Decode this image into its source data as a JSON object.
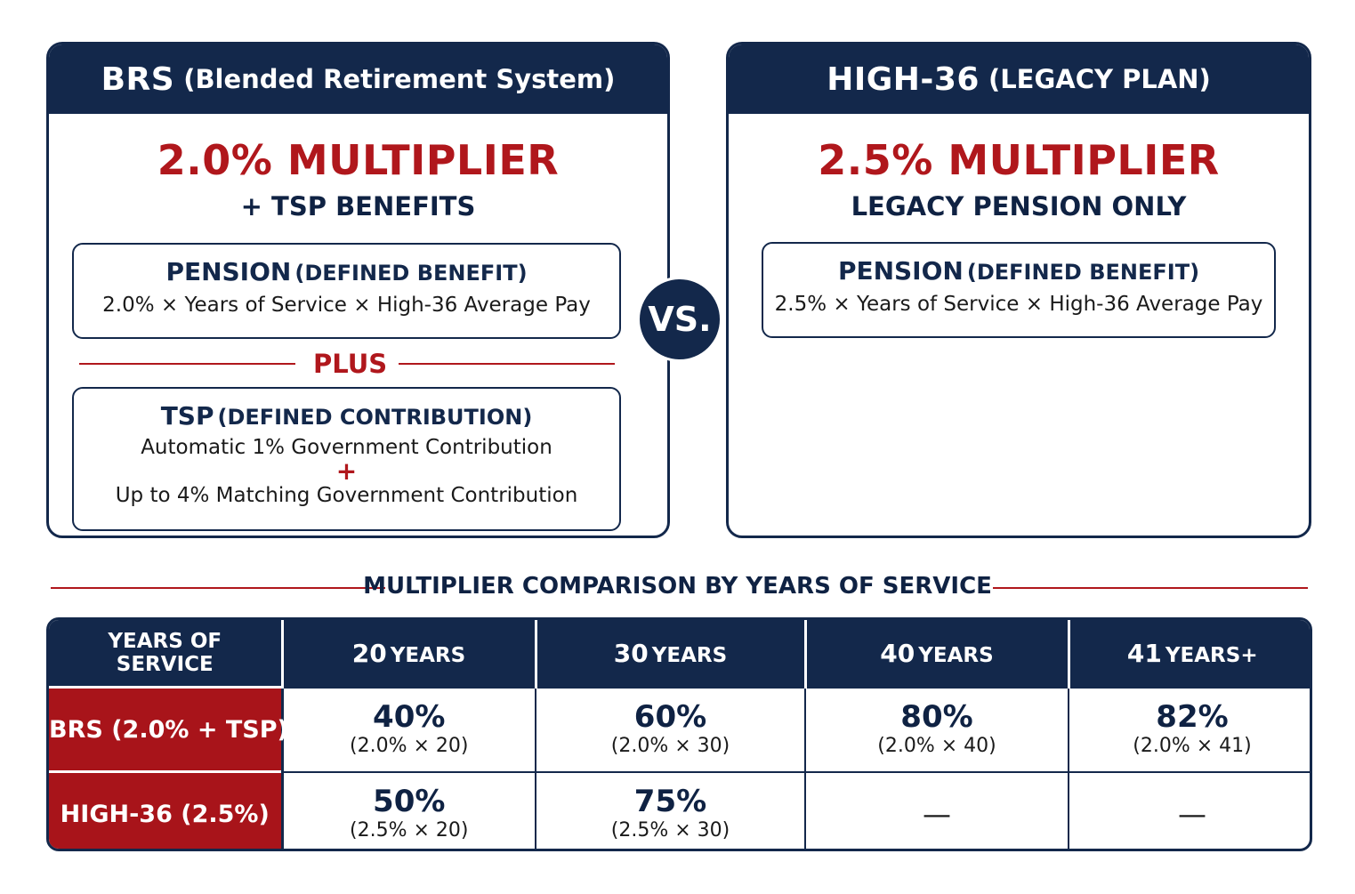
{
  "brs": {
    "header_main": "BRS",
    "header_sub": "(Blended Retirement System)",
    "multiplier": "2.0% MULTIPLIER",
    "subtitle": "+ TSP BENEFITS",
    "pension_title_main": "PENSION",
    "pension_title_sub": "(DEFINED BENEFIT)",
    "pension_formula": "2.0% × Years of Service × High-36 Average Pay",
    "plus_label": "PLUS",
    "tsp_title_main": "TSP",
    "tsp_title_sub": "(DEFINED CONTRIBUTION)",
    "tsp_line1": "Automatic 1% Government Contribution",
    "tsp_plus": "+",
    "tsp_line2": "Up to 4% Matching Government Contribution"
  },
  "vs_label": "VS.",
  "legacy": {
    "header_main": "HIGH-36",
    "header_sub": "(LEGACY PLAN)",
    "multiplier": "2.5% MULTIPLIER",
    "subtitle": "LEGACY PENSION ONLY",
    "pension_title_main": "PENSION",
    "pension_title_sub": "(DEFINED BENEFIT)",
    "pension_formula": "2.5% × Years of Service × High-36 Average Pay"
  },
  "comparison": {
    "title": "MULTIPLIER COMPARISON BY YEARS OF SERVICE",
    "corner_line1": "YEARS OF",
    "corner_line2": "SERVICE",
    "columns": [
      {
        "num": "20",
        "unit": "YEARS"
      },
      {
        "num": "30",
        "unit": "YEARS"
      },
      {
        "num": "40",
        "unit": "YEARS"
      },
      {
        "num": "41",
        "unit": "YEARS+"
      }
    ],
    "rows": [
      {
        "label": "BRS (2.0% + TSP)",
        "cells": [
          {
            "value": "40%",
            "formula": "(2.0% × 20)"
          },
          {
            "value": "60%",
            "formula": "(2.0% × 30)"
          },
          {
            "value": "80%",
            "formula": "(2.0% × 40)"
          },
          {
            "value": "82%",
            "formula": "(2.0% × 41)"
          }
        ]
      },
      {
        "label": "HIGH-36 (2.5%)",
        "cells": [
          {
            "value": "50%",
            "formula": "(2.5% × 20)"
          },
          {
            "value": "75%",
            "formula": "(2.5% × 30)"
          },
          {
            "dash": "—"
          },
          {
            "dash": "—"
          }
        ]
      }
    ]
  },
  "colors": {
    "navy": "#13284b",
    "red": "#b0171c",
    "row_label_red": "#a8141a"
  }
}
